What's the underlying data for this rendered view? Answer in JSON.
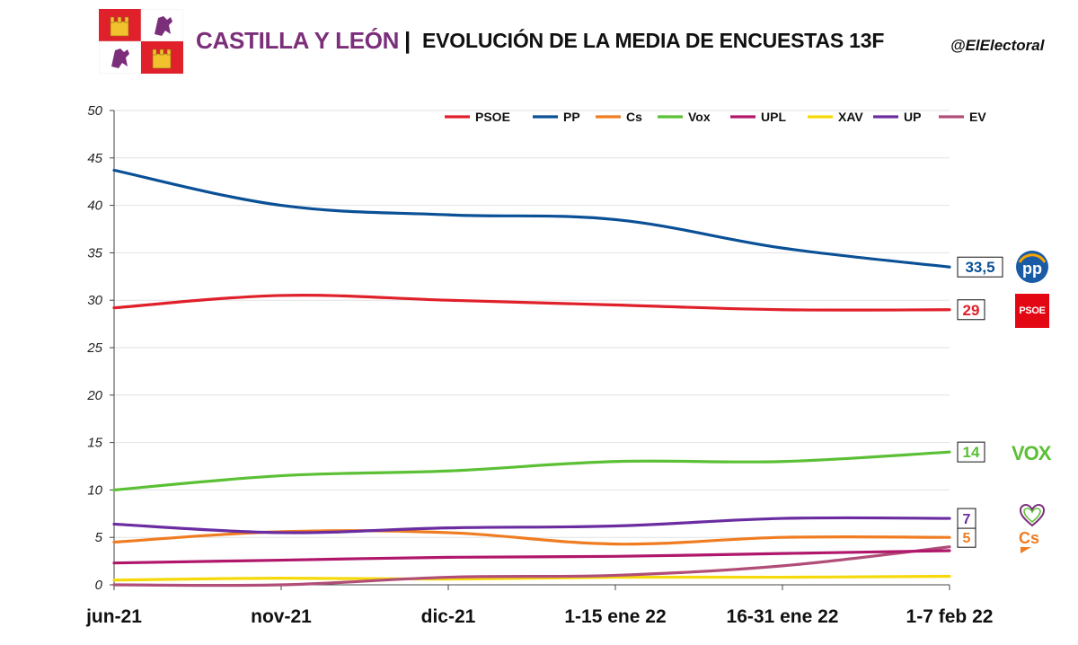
{
  "header": {
    "region": "CASTILLA Y LEÓN",
    "separator": "|",
    "title": "EVOLUCIÓN DE LA MEDIA DE ENCUESTAS 13F",
    "handle": "@ElElectoral"
  },
  "logos": {
    "psoe_text": "PSOE",
    "vox_text": "VOX"
  },
  "chart_data": {
    "type": "line",
    "title": "EVOLUCIÓN DE LA MEDIA DE ENCUESTAS 13F",
    "xlabel": "",
    "ylabel": "",
    "categories": [
      "jun-21",
      "nov-21",
      "dic-21",
      "1-15 ene 22",
      "16-31 ene 22",
      "1-7 feb 22"
    ],
    "ylim": [
      0,
      50
    ],
    "yticks": [
      "0",
      "5",
      "10",
      "15",
      "20",
      "25",
      "30",
      "35",
      "40",
      "45",
      "50"
    ],
    "grid": true,
    "legend_position": "top-right",
    "series": [
      {
        "name": "PSOE",
        "color": "#e0202a",
        "values": [
          29.2,
          30.5,
          30.0,
          29.5,
          29.0,
          29.0
        ],
        "end_label": "29"
      },
      {
        "name": "PP",
        "color": "#0a5096",
        "values": [
          43.7,
          40.0,
          39.0,
          38.5,
          35.5,
          33.5
        ],
        "end_label": "33,5"
      },
      {
        "name": "Cs",
        "color": "#f07c21",
        "values": [
          4.5,
          5.6,
          5.5,
          4.3,
          5.0,
          5.0
        ],
        "end_label": "5"
      },
      {
        "name": "Vox",
        "color": "#5bc035",
        "values": [
          10.0,
          11.5,
          12.0,
          13.0,
          13.0,
          14.0
        ],
        "end_label": "14"
      },
      {
        "name": "UPL",
        "color": "#b0176b",
        "values": [
          2.3,
          2.6,
          2.9,
          3.0,
          3.3,
          3.6
        ],
        "end_label": ""
      },
      {
        "name": "XAV",
        "color": "#f5d90a",
        "values": [
          0.5,
          0.7,
          0.6,
          0.8,
          0.8,
          0.9
        ],
        "end_label": ""
      },
      {
        "name": "UP",
        "color": "#6a2ca0",
        "values": [
          6.4,
          5.5,
          6.0,
          6.2,
          7.0,
          7.0
        ],
        "end_label": "7"
      },
      {
        "name": "EV",
        "color": "#b04e78",
        "values": [
          0.0,
          0.0,
          0.8,
          1.0,
          2.0,
          4.0
        ],
        "end_label": ""
      }
    ]
  }
}
